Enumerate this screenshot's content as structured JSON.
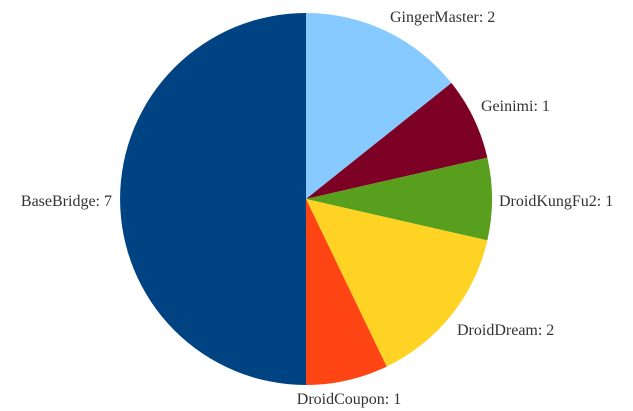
{
  "chart_data": {
    "type": "pie",
    "title": "",
    "slices": [
      {
        "label": "GingerMaster",
        "value": 2,
        "color": "#87CAFF",
        "text": "GingerMaster: 2"
      },
      {
        "label": "Geinimi",
        "value": 1,
        "color": "#7D0025",
        "text": "Geinimi: 1"
      },
      {
        "label": "DroidKungFu2",
        "value": 1,
        "color": "#589F1E",
        "text": "DroidKungFu2: 1"
      },
      {
        "label": "DroidDream",
        "value": 2,
        "color": "#FFD324",
        "text": "DroidDream: 2"
      },
      {
        "label": "DroidCoupon",
        "value": 1,
        "color": "#FF4514",
        "text": "DroidCoupon: 1"
      },
      {
        "label": "BaseBridge",
        "value": 7,
        "color": "#004383",
        "text": "BaseBridge: 7"
      }
    ],
    "start": "12 o'clock",
    "direction": "clockwise",
    "legend": "none"
  }
}
